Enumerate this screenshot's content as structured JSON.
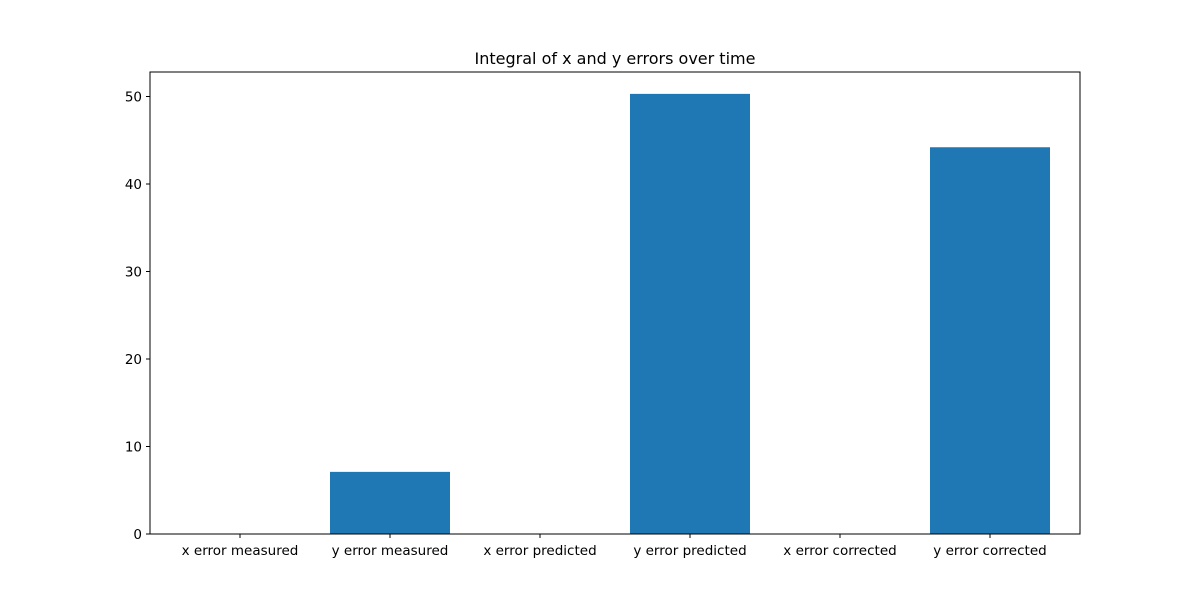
{
  "chart_data": {
    "type": "bar",
    "title": "Integral of x and y errors over time",
    "xlabel": "",
    "ylabel": "",
    "categories": [
      "x error measured",
      "y error measured",
      "x error predicted",
      "y error predicted",
      "x error corrected",
      "y error corrected"
    ],
    "values": [
      0,
      7.1,
      0,
      50.3,
      0,
      44.2
    ],
    "ylim": [
      0,
      52.8
    ],
    "yticks": [
      0,
      10,
      20,
      30,
      40,
      50
    ],
    "ytick_labels": [
      "0",
      "10",
      "20",
      "30",
      "40",
      "50"
    ],
    "grid": false,
    "legend": "none",
    "bar_color": "#1f77b4"
  }
}
